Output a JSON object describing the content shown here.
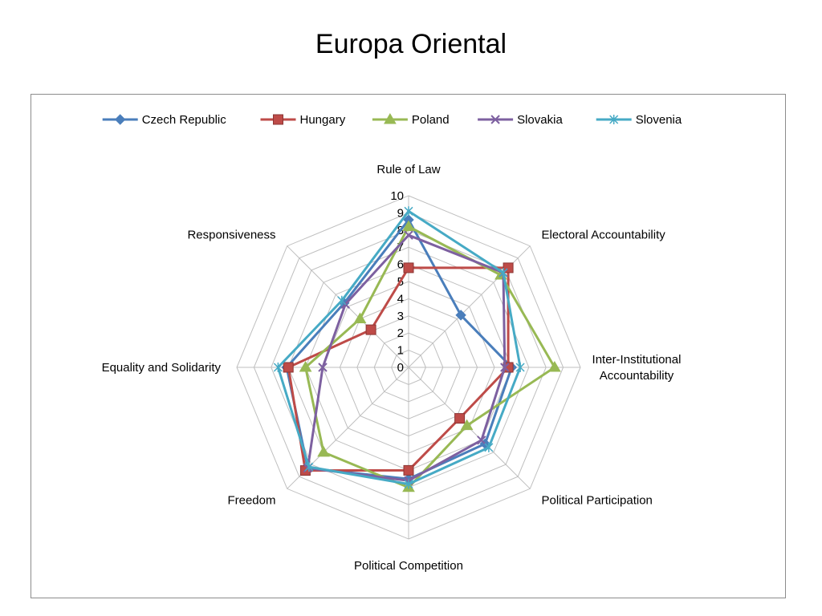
{
  "chart_data": {
    "type": "radar",
    "title": "Europa Oriental",
    "axes": [
      "Rule of Law",
      "Electoral Accountability",
      "Inter-Institutional Accountability",
      "Political Participation",
      "Political Competition",
      "Freedom",
      "Equality and Solidarity",
      "Responsiveness"
    ],
    "axis_label_lines": [
      [
        "Rule of Law"
      ],
      [
        "Electoral Accountability"
      ],
      [
        "Inter-Institutional",
        "Accountability"
      ],
      [
        "Political Participation"
      ],
      [
        "Political Competition"
      ],
      [
        "Freedom"
      ],
      [
        "Equality and Solidarity"
      ],
      [
        "Responsiveness"
      ]
    ],
    "rmin": 0,
    "rmax": 10,
    "ticks": [
      "0",
      "1",
      "2",
      "3",
      "4",
      "5",
      "6",
      "7",
      "8",
      "9",
      "10"
    ],
    "legend_position": "top",
    "grid": true,
    "series": [
      {
        "name": "Czech Republic",
        "color": "#4a7ebb",
        "marker": "diamond",
        "values": [
          8.6,
          4.3,
          6.0,
          6.3,
          6.5,
          8.3,
          7.1,
          5.3
        ]
      },
      {
        "name": "Hungary",
        "color": "#be4b48",
        "marker": "square",
        "values": [
          5.8,
          8.2,
          5.8,
          4.2,
          6.0,
          8.5,
          7.0,
          3.1
        ]
      },
      {
        "name": "Poland",
        "color": "#98b954",
        "marker": "triangle",
        "values": [
          8.2,
          7.6,
          8.5,
          4.8,
          7.0,
          7.0,
          6.0,
          4.0
        ]
      },
      {
        "name": "Slovakia",
        "color": "#7d60a0",
        "marker": "x",
        "values": [
          7.7,
          7.8,
          5.6,
          6.0,
          6.6,
          8.3,
          5.0,
          5.2
        ]
      },
      {
        "name": "Slovenia",
        "color": "#46aac5",
        "marker": "star",
        "values": [
          9.1,
          7.8,
          6.5,
          6.6,
          6.8,
          8.2,
          7.6,
          5.5
        ]
      }
    ]
  }
}
